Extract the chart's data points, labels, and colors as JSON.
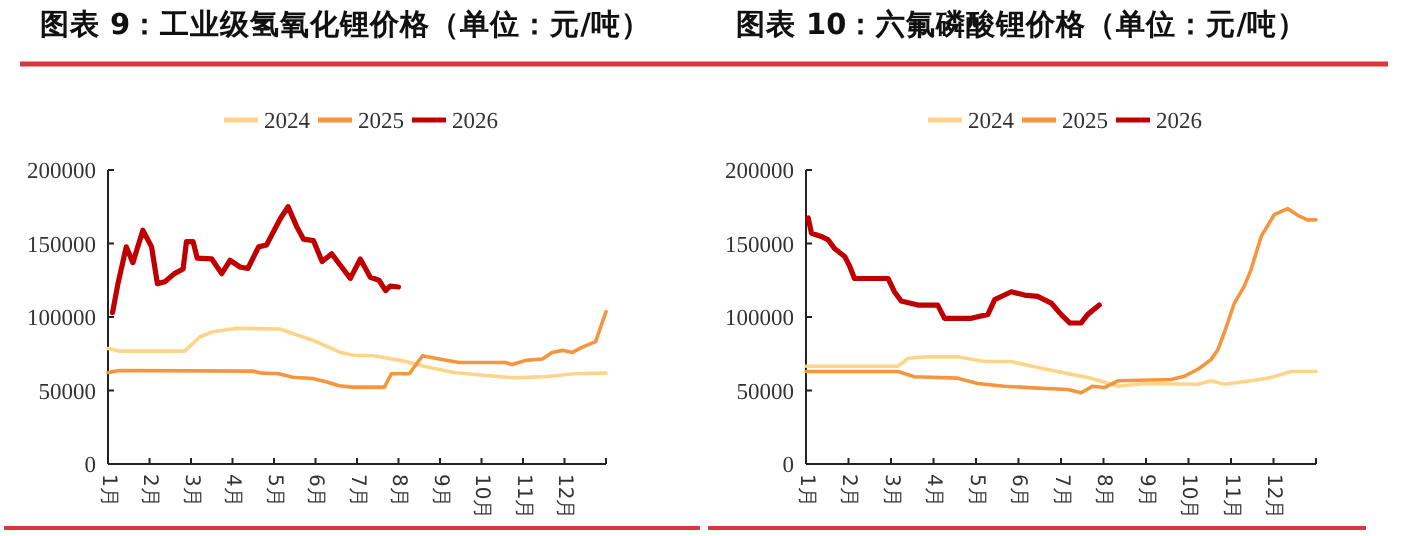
{
  "chart_data": [
    {
      "type": "line",
      "title": "图表 9：工业级氢氧化锂价格（单位：元/吨）",
      "legend": "top",
      "xlim": [
        1,
        13
      ],
      "xticks": [
        {
          "value": 1,
          "label": "1月"
        },
        {
          "value": 2,
          "label": "2月"
        },
        {
          "value": 3,
          "label": "3月"
        },
        {
          "value": 4,
          "label": "4月"
        },
        {
          "value": 5,
          "label": "5月"
        },
        {
          "value": 6,
          "label": "6月"
        },
        {
          "value": 7,
          "label": "7月"
        },
        {
          "value": 8,
          "label": "8月"
        },
        {
          "value": 9,
          "label": "9月"
        },
        {
          "value": 10,
          "label": "10月"
        },
        {
          "value": 11,
          "label": "11月"
        },
        {
          "value": 12,
          "label": "12月"
        },
        {
          "value": 13,
          "label": null
        }
      ],
      "ylim": [
        0,
        200000
      ],
      "yticks": [
        0,
        50000,
        100000,
        150000,
        200000
      ],
      "series": [
        {
          "name": "2024",
          "color": "#fdd58a",
          "x": [
            1,
            1.27,
            2.85,
            3.21,
            3.53,
            4.1,
            5.15,
            5.47,
            5.95,
            6.6,
            6.92,
            7.4,
            8.05,
            8.69,
            9.34,
            9.98,
            10.8,
            11.6,
            12.24,
            13
          ],
          "values": [
            78600,
            76800,
            76800,
            86400,
            90000,
            92300,
            91800,
            88600,
            84000,
            75900,
            74000,
            73600,
            70500,
            66000,
            62300,
            60500,
            58600,
            59500,
            61400,
            61800
          ]
        },
        {
          "name": "2025",
          "color": "#f7953f",
          "x": [
            1,
            1.27,
            4.48,
            4.72,
            5.12,
            5.45,
            5.93,
            6.25,
            6.57,
            6.89,
            7.66,
            7.83,
            8.26,
            8.58,
            8.98,
            9.46,
            10.58,
            10.74,
            11.06,
            11.47,
            11.7,
            11.95,
            12.19,
            12.43,
            12.75,
            13
          ],
          "values": [
            62300,
            63600,
            63200,
            61800,
            61400,
            59000,
            58200,
            55900,
            53200,
            52300,
            52300,
            61400,
            61400,
            73600,
            71400,
            69000,
            69000,
            67700,
            70500,
            71400,
            75900,
            77300,
            75900,
            79500,
            83200,
            103600
          ]
        },
        {
          "name": "2026",
          "color": "#c00000",
          "x": [
            1.11,
            1.24,
            1.44,
            1.6,
            1.84,
            2.05,
            2.19,
            2.37,
            2.6,
            2.81,
            2.89,
            3.05,
            3.15,
            3.5,
            3.74,
            3.94,
            4.18,
            4.37,
            4.63,
            4.82,
            5.15,
            5.34,
            5.55,
            5.71,
            5.95,
            6.16,
            6.39,
            6.63,
            6.84,
            7.08,
            7.32,
            7.53,
            7.69,
            7.8,
            8.0
          ],
          "values": [
            103000,
            122700,
            147700,
            137000,
            159000,
            147700,
            122700,
            124000,
            129500,
            132700,
            151300,
            151300,
            140000,
            139500,
            129500,
            138600,
            134000,
            133000,
            147700,
            149000,
            166800,
            175000,
            161300,
            153000,
            152000,
            137700,
            143000,
            134000,
            126300,
            139500,
            127000,
            125000,
            118000,
            121000,
            120400
          ]
        }
      ]
    },
    {
      "type": "line",
      "title": "图表 10：六氟磷酸锂价格（单位：元/吨）",
      "legend": "top",
      "xlim": [
        1,
        13
      ],
      "xticks": [
        {
          "value": 1,
          "label": "1月"
        },
        {
          "value": 2,
          "label": "2月"
        },
        {
          "value": 3,
          "label": "3月"
        },
        {
          "value": 4,
          "label": "4月"
        },
        {
          "value": 5,
          "label": "5月"
        },
        {
          "value": 6,
          "label": "6月"
        },
        {
          "value": 7,
          "label": "7月"
        },
        {
          "value": 8,
          "label": "8月"
        },
        {
          "value": 9,
          "label": "9月"
        },
        {
          "value": 10,
          "label": "10月"
        },
        {
          "value": 11,
          "label": "11月"
        },
        {
          "value": 12,
          "label": "12月"
        },
        {
          "value": 13,
          "label": null
        }
      ],
      "ylim": [
        0,
        200000
      ],
      "yticks": [
        0,
        50000,
        100000,
        150000,
        200000
      ],
      "series": [
        {
          "name": "2024",
          "color": "#fdd58a",
          "x": [
            1,
            3.16,
            3.4,
            3.79,
            4.57,
            5.2,
            5.83,
            6.45,
            7.08,
            7.71,
            8.34,
            8.96,
            10.22,
            10.53,
            10.84,
            11.47,
            11.94,
            12.41,
            13
          ],
          "values": [
            66500,
            66500,
            71900,
            72900,
            72900,
            69700,
            69700,
            65600,
            62000,
            58400,
            52900,
            54800,
            54300,
            56600,
            54300,
            56600,
            58800,
            62900,
            62900
          ]
        },
        {
          "name": "2025",
          "color": "#f7953f",
          "x": [
            1,
            3.16,
            3.55,
            4.57,
            5.04,
            5.67,
            6.45,
            7.16,
            7.47,
            7.74,
            8.02,
            8.34,
            9.59,
            9.9,
            10.22,
            10.53,
            10.69,
            10.84,
            11.08,
            11.31,
            11.47,
            11.71,
            12.02,
            12.33,
            12.57,
            12.8,
            13
          ],
          "values": [
            62900,
            62900,
            59300,
            58400,
            54800,
            52900,
            51600,
            50700,
            48400,
            52900,
            52000,
            56600,
            57500,
            59700,
            64300,
            71000,
            77800,
            89100,
            109500,
            120800,
            132100,
            154800,
            169700,
            173800,
            169200,
            166100,
            166100
          ]
        },
        {
          "name": "2026",
          "color": "#c00000",
          "x": [
            1.05,
            1.13,
            1.36,
            1.52,
            1.67,
            1.91,
            2.03,
            2.14,
            2.93,
            3.08,
            3.24,
            3.63,
            4.1,
            4.26,
            4.89,
            5.28,
            5.44,
            5.83,
            6.14,
            6.45,
            6.77,
            7.0,
            7.21,
            7.47,
            7.63,
            7.9
          ],
          "values": [
            167400,
            157000,
            154800,
            152500,
            146600,
            141200,
            134400,
            126200,
            126200,
            117200,
            110900,
            108100,
            108100,
            99100,
            99100,
            101800,
            111800,
            117200,
            114900,
            114000,
            109500,
            101800,
            95900,
            95900,
            101800,
            108100
          ]
        }
      ]
    }
  ]
}
